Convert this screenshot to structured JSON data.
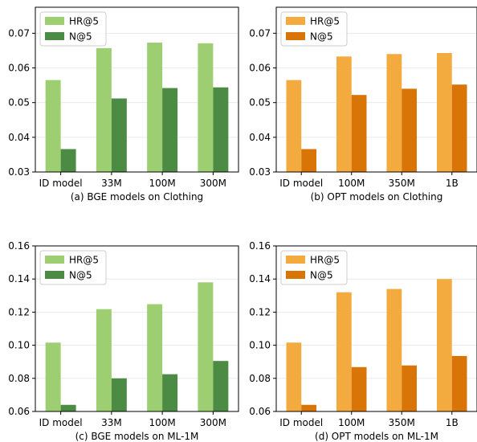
{
  "chart_data": [
    {
      "type": "bar",
      "caption": "(a) BGE models on Clothing",
      "categories": [
        "ID model",
        "33M",
        "100M",
        "300M"
      ],
      "series": [
        {
          "name": "HR@5",
          "values": [
            0.0565,
            0.0657,
            0.0673,
            0.0671
          ],
          "color": "#9dcf72"
        },
        {
          "name": "N@5",
          "values": [
            0.0366,
            0.0512,
            0.0542,
            0.0544
          ],
          "color": "#4c8b43"
        }
      ],
      "ylim": [
        0.03,
        0.0775
      ],
      "yticks": [
        "0.03",
        "0.04",
        "0.05",
        "0.06",
        "0.07"
      ],
      "ytick_values": [
        0.03,
        0.04,
        0.05,
        0.06,
        0.07
      ],
      "grid": true,
      "legend": "top-left"
    },
    {
      "type": "bar",
      "caption": "(b) OPT models on Clothing",
      "categories": [
        "ID model",
        "100M",
        "350M",
        "1B"
      ],
      "series": [
        {
          "name": "HR@5",
          "values": [
            0.0565,
            0.0633,
            0.064,
            0.0643
          ],
          "color": "#f3aa3f"
        },
        {
          "name": "N@5",
          "values": [
            0.0366,
            0.0522,
            0.054,
            0.0552
          ],
          "color": "#d97506"
        }
      ],
      "ylim": [
        0.03,
        0.0775
      ],
      "yticks": [
        "0.03",
        "0.04",
        "0.05",
        "0.06",
        "0.07"
      ],
      "ytick_values": [
        0.03,
        0.04,
        0.05,
        0.06,
        0.07
      ],
      "grid": true,
      "legend": "top-left"
    },
    {
      "type": "bar",
      "caption": "(c) BGE models on ML-1M",
      "categories": [
        "ID model",
        "33M",
        "100M",
        "300M"
      ],
      "series": [
        {
          "name": "HR@5",
          "values": [
            0.1016,
            0.1218,
            0.1248,
            0.138
          ],
          "color": "#9dcf72"
        },
        {
          "name": "N@5",
          "values": [
            0.064,
            0.08,
            0.0825,
            0.0905
          ],
          "color": "#4c8b43"
        }
      ],
      "ylim": [
        0.06,
        0.16
      ],
      "yticks": [
        "0.06",
        "0.08",
        "0.10",
        "0.12",
        "0.14",
        "0.16"
      ],
      "ytick_values": [
        0.06,
        0.08,
        0.1,
        0.12,
        0.14,
        0.16
      ],
      "grid": true,
      "legend": "top-left"
    },
    {
      "type": "bar",
      "caption": "(d) OPT models on ML-1M",
      "categories": [
        "ID model",
        "100M",
        "350M",
        "1B"
      ],
      "series": [
        {
          "name": "HR@5",
          "values": [
            0.1016,
            0.132,
            0.134,
            0.14
          ],
          "color": "#f3aa3f"
        },
        {
          "name": "N@5",
          "values": [
            0.064,
            0.0868,
            0.0878,
            0.0935
          ],
          "color": "#d97506"
        }
      ],
      "ylim": [
        0.06,
        0.16
      ],
      "yticks": [
        "0.06",
        "0.08",
        "0.10",
        "0.12",
        "0.14",
        "0.16"
      ],
      "ytick_values": [
        0.06,
        0.08,
        0.1,
        0.12,
        0.14,
        0.16
      ],
      "grid": true,
      "legend": "top-left"
    }
  ]
}
